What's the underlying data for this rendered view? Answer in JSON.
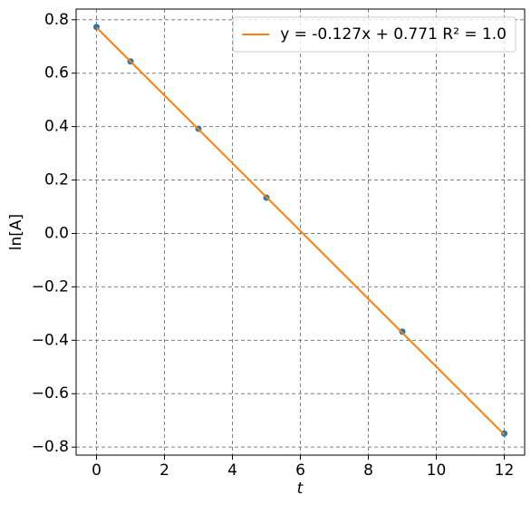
{
  "chart_data": {
    "type": "scatter",
    "xlabel": "t",
    "ylabel": "ln[A]",
    "xlim": [
      -0.6,
      12.6
    ],
    "ylim": [
      -0.83,
      0.84
    ],
    "xticks": [
      0,
      2,
      4,
      6,
      8,
      10,
      12
    ],
    "yticks": [
      {
        "value": -0.8,
        "label": "−0.8"
      },
      {
        "value": -0.6,
        "label": "−0.6"
      },
      {
        "value": -0.4,
        "label": "−0.4"
      },
      {
        "value": -0.2,
        "label": "−0.2"
      },
      {
        "value": 0,
        "label": "0.0"
      },
      0.2,
      0.4,
      0.6,
      0.8
    ],
    "grid": true,
    "legend": "upper right",
    "series": [
      {
        "type": "scatter",
        "color": "#1f77b4",
        "x": [
          0,
          1,
          3,
          5,
          9,
          12
        ],
        "values": [
          0.773,
          0.644,
          0.392,
          0.134,
          -0.368,
          -0.749
        ]
      },
      {
        "type": "line",
        "name": "y = -0.127x + 0.771  R² = 1.0",
        "color": "#ff7f0e",
        "x": [
          0,
          12
        ],
        "values": [
          0.771,
          -0.753
        ]
      }
    ]
  }
}
